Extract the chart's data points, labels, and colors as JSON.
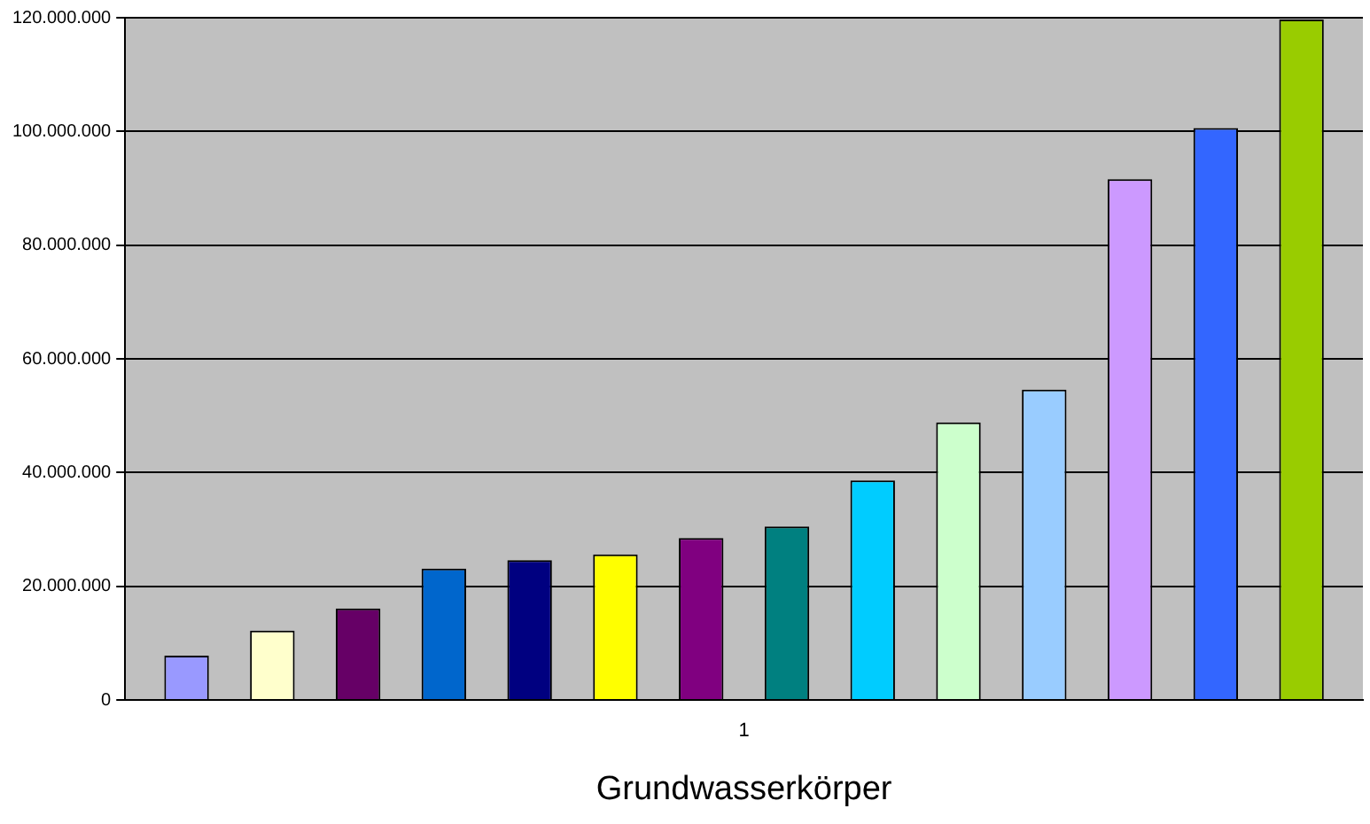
{
  "chart_data": {
    "type": "bar",
    "xlabel": "Grundwasserkörper",
    "categories": [
      "1"
    ],
    "series": [
      {
        "color": "#9999ff",
        "values": [
          7800000
        ]
      },
      {
        "color": "#ffffcc",
        "values": [
          12200000
        ]
      },
      {
        "color": "#660066",
        "values": [
          16100000
        ]
      },
      {
        "color": "#0066cc",
        "values": [
          23100000
        ]
      },
      {
        "color": "#000080",
        "values": [
          24600000
        ]
      },
      {
        "color": "#ffff00",
        "values": [
          25600000
        ]
      },
      {
        "color": "#800080",
        "values": [
          28500000
        ]
      },
      {
        "color": "#008080",
        "values": [
          30500000
        ]
      },
      {
        "color": "#00ccff",
        "values": [
          38600000
        ]
      },
      {
        "color": "#ccffcc",
        "values": [
          48800000
        ]
      },
      {
        "color": "#99ccff",
        "values": [
          54600000
        ]
      },
      {
        "color": "#cc99ff",
        "values": [
          91600000
        ]
      },
      {
        "color": "#3366ff",
        "values": [
          100600000
        ]
      },
      {
        "color": "#99cc00",
        "values": [
          119700000
        ]
      }
    ],
    "ylim": [
      0,
      120000000
    ],
    "yticks": [
      {
        "value": 0,
        "label": "0"
      },
      {
        "value": 20000000,
        "label": "20.000.000"
      },
      {
        "value": 40000000,
        "label": "40.000.000"
      },
      {
        "value": 60000000,
        "label": "60.000.000"
      },
      {
        "value": 80000000,
        "label": "80.000.000"
      },
      {
        "value": 100000000,
        "label": "100.000.000"
      },
      {
        "value": 120000000,
        "label": "120.000.000"
      }
    ],
    "grid": "y",
    "legend": false
  }
}
